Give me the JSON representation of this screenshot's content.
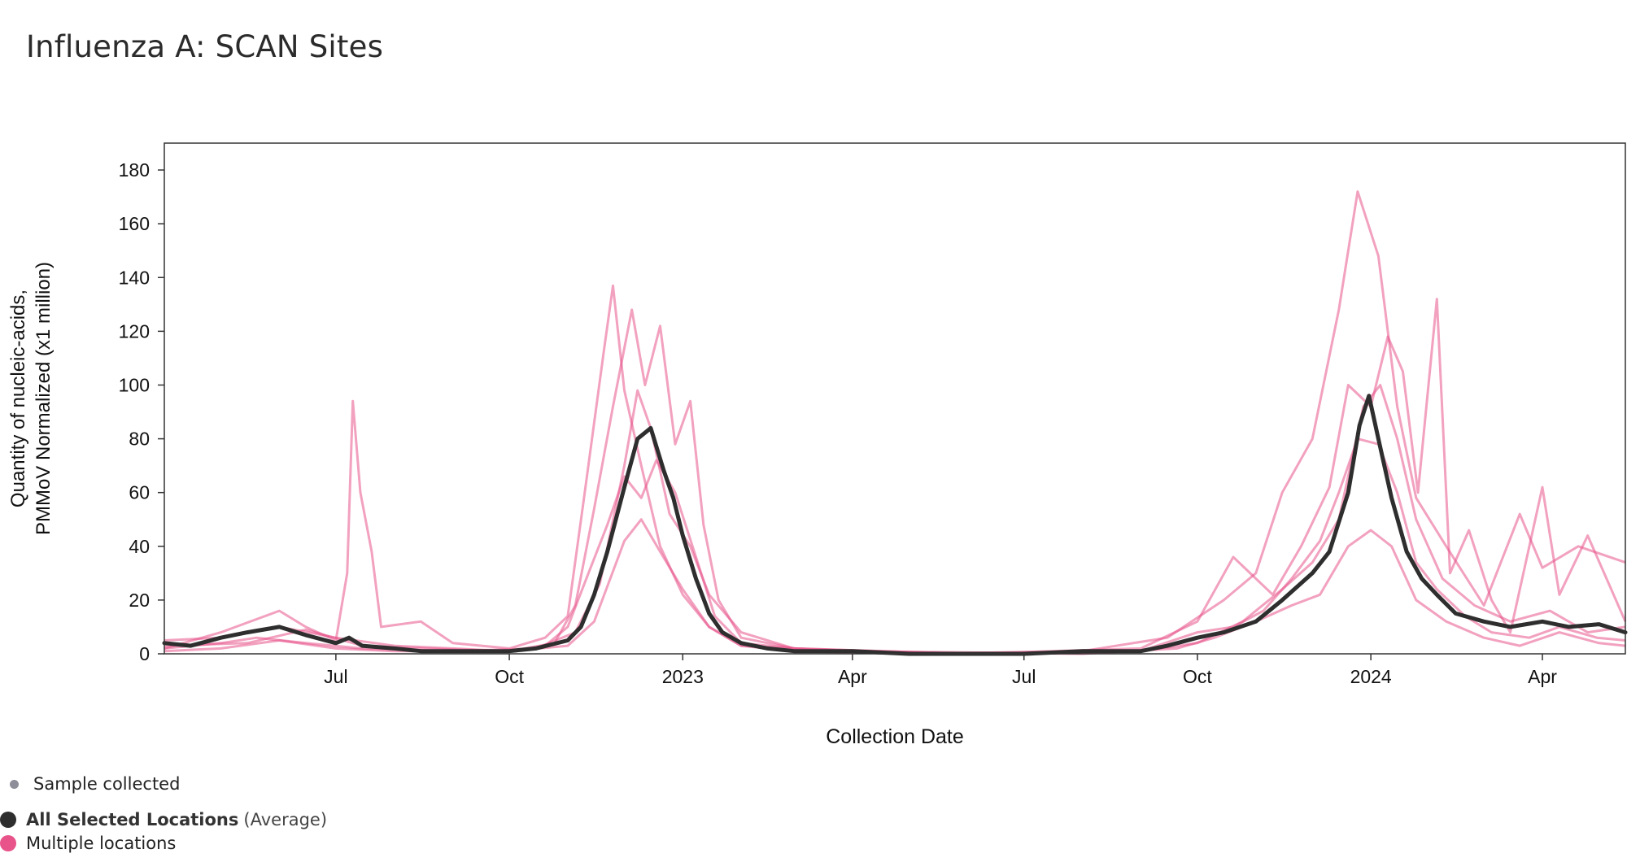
{
  "title": "Influenza A: SCAN Sites",
  "legend": {
    "sample": "Sample collected",
    "avg_bold": "All Selected Locations",
    "avg_sub": "(Average)",
    "multi": "Multiple locations"
  },
  "colors": {
    "average": "#2e2e2e",
    "locations": "#e8548a",
    "sample_dot": "#8e8e9a"
  },
  "chart_data": {
    "type": "line",
    "title": "Influenza A: SCAN Sites",
    "xlabel": "Collection Date",
    "ylabel": [
      "Quantity of nucleic-acids,",
      "PMMoV Normalized (x1 million)"
    ],
    "xlim": [
      "2022-04-01",
      "2024-05-15"
    ],
    "ylim": [
      0,
      190
    ],
    "yticks": [
      0,
      20,
      40,
      60,
      80,
      100,
      120,
      140,
      160,
      180
    ],
    "xticks": [
      {
        "date": "2022-07-01",
        "label": "Jul"
      },
      {
        "date": "2022-10-01",
        "label": "Oct"
      },
      {
        "date": "2023-01-01",
        "label": "2023"
      },
      {
        "date": "2023-04-01",
        "label": "Apr"
      },
      {
        "date": "2023-07-01",
        "label": "Jul"
      },
      {
        "date": "2023-10-01",
        "label": "Oct"
      },
      {
        "date": "2024-01-01",
        "label": "2024"
      },
      {
        "date": "2024-04-01",
        "label": "Apr"
      }
    ],
    "series": [
      {
        "name": "All Selected Locations",
        "role": "average",
        "points": [
          [
            "2022-04-01",
            4
          ],
          [
            "2022-04-15",
            3
          ],
          [
            "2022-05-01",
            6
          ],
          [
            "2022-05-15",
            8
          ],
          [
            "2022-06-01",
            10
          ],
          [
            "2022-06-15",
            7
          ],
          [
            "2022-07-01",
            4
          ],
          [
            "2022-07-08",
            6
          ],
          [
            "2022-07-15",
            3
          ],
          [
            "2022-08-01",
            2
          ],
          [
            "2022-08-15",
            1
          ],
          [
            "2022-09-01",
            1
          ],
          [
            "2022-09-15",
            1
          ],
          [
            "2022-10-01",
            1
          ],
          [
            "2022-10-15",
            2
          ],
          [
            "2022-11-01",
            5
          ],
          [
            "2022-11-08",
            10
          ],
          [
            "2022-11-15",
            22
          ],
          [
            "2022-11-22",
            38
          ],
          [
            "2022-12-01",
            62
          ],
          [
            "2022-12-08",
            80
          ],
          [
            "2022-12-15",
            84
          ],
          [
            "2022-12-22",
            68
          ],
          [
            "2022-12-27",
            58
          ],
          [
            "2023-01-01",
            44
          ],
          [
            "2023-01-08",
            28
          ],
          [
            "2023-01-15",
            15
          ],
          [
            "2023-01-22",
            8
          ],
          [
            "2023-02-01",
            4
          ],
          [
            "2023-02-15",
            2
          ],
          [
            "2023-03-01",
            1
          ],
          [
            "2023-04-01",
            1
          ],
          [
            "2023-05-01",
            0
          ],
          [
            "2023-06-01",
            0
          ],
          [
            "2023-07-01",
            0
          ],
          [
            "2023-08-01",
            1
          ],
          [
            "2023-09-01",
            1
          ],
          [
            "2023-09-15",
            3
          ],
          [
            "2023-10-01",
            6
          ],
          [
            "2023-10-15",
            8
          ],
          [
            "2023-11-01",
            12
          ],
          [
            "2023-11-15",
            20
          ],
          [
            "2023-12-01",
            30
          ],
          [
            "2023-12-10",
            38
          ],
          [
            "2023-12-20",
            60
          ],
          [
            "2023-12-26",
            85
          ],
          [
            "2023-12-31",
            96
          ],
          [
            "2024-01-05",
            80
          ],
          [
            "2024-01-12",
            58
          ],
          [
            "2024-01-20",
            38
          ],
          [
            "2024-01-28",
            28
          ],
          [
            "2024-02-05",
            22
          ],
          [
            "2024-02-15",
            15
          ],
          [
            "2024-03-01",
            12
          ],
          [
            "2024-03-15",
            10
          ],
          [
            "2024-04-01",
            12
          ],
          [
            "2024-04-15",
            10
          ],
          [
            "2024-05-01",
            11
          ],
          [
            "2024-05-15",
            8
          ]
        ]
      },
      {
        "name": "Multiple locations",
        "role": "location",
        "points": [
          [
            "2022-04-01",
            2
          ],
          [
            "2022-05-01",
            8
          ],
          [
            "2022-06-01",
            16
          ],
          [
            "2022-06-15",
            10
          ],
          [
            "2022-07-01",
            5
          ],
          [
            "2022-07-07",
            30
          ],
          [
            "2022-07-10",
            94
          ],
          [
            "2022-07-14",
            60
          ],
          [
            "2022-07-20",
            38
          ],
          [
            "2022-07-25",
            10
          ],
          [
            "2022-08-15",
            12
          ],
          [
            "2022-09-01",
            4
          ],
          [
            "2022-10-01",
            2
          ],
          [
            "2022-10-20",
            6
          ],
          [
            "2022-11-01",
            14
          ],
          [
            "2022-11-10",
            60
          ],
          [
            "2022-11-20",
            112
          ],
          [
            "2022-11-25",
            137
          ],
          [
            "2022-12-01",
            98
          ],
          [
            "2022-12-10",
            70
          ],
          [
            "2022-12-20",
            40
          ],
          [
            "2023-01-01",
            22
          ],
          [
            "2023-01-15",
            10
          ],
          [
            "2023-02-01",
            3
          ],
          [
            "2023-03-01",
            1
          ],
          [
            "2023-05-01",
            0
          ],
          [
            "2023-08-01",
            1
          ],
          [
            "2023-09-15",
            6
          ],
          [
            "2023-10-15",
            20
          ],
          [
            "2023-11-01",
            30
          ],
          [
            "2023-11-15",
            60
          ],
          [
            "2023-12-01",
            80
          ],
          [
            "2023-12-15",
            128
          ],
          [
            "2023-12-25",
            172
          ],
          [
            "2024-01-05",
            148
          ],
          [
            "2024-01-15",
            92
          ],
          [
            "2024-01-25",
            58
          ],
          [
            "2024-02-10",
            40
          ],
          [
            "2024-03-01",
            18
          ],
          [
            "2024-03-20",
            52
          ],
          [
            "2024-04-01",
            32
          ],
          [
            "2024-04-20",
            40
          ],
          [
            "2024-05-15",
            34
          ]
        ]
      },
      {
        "name": "Multiple locations",
        "role": "location",
        "points": [
          [
            "2022-04-01",
            5
          ],
          [
            "2022-05-01",
            6
          ],
          [
            "2022-06-01",
            10
          ],
          [
            "2022-07-01",
            6
          ],
          [
            "2022-08-01",
            3
          ],
          [
            "2022-09-01",
            2
          ],
          [
            "2022-10-01",
            1
          ],
          [
            "2022-10-25",
            4
          ],
          [
            "2022-11-05",
            18
          ],
          [
            "2022-11-15",
            54
          ],
          [
            "2022-11-25",
            92
          ],
          [
            "2022-12-05",
            128
          ],
          [
            "2022-12-12",
            100
          ],
          [
            "2022-12-20",
            122
          ],
          [
            "2022-12-28",
            78
          ],
          [
            "2023-01-05",
            94
          ],
          [
            "2023-01-12",
            48
          ],
          [
            "2023-01-20",
            20
          ],
          [
            "2023-02-01",
            6
          ],
          [
            "2023-03-01",
            2
          ],
          [
            "2023-06-01",
            0
          ],
          [
            "2023-09-01",
            2
          ],
          [
            "2023-10-01",
            12
          ],
          [
            "2023-10-20",
            36
          ],
          [
            "2023-11-10",
            22
          ],
          [
            "2023-11-25",
            40
          ],
          [
            "2023-12-10",
            62
          ],
          [
            "2023-12-20",
            100
          ],
          [
            "2024-01-01",
            92
          ],
          [
            "2024-01-10",
            118
          ],
          [
            "2024-01-18",
            105
          ],
          [
            "2024-01-26",
            60
          ],
          [
            "2024-02-05",
            132
          ],
          [
            "2024-02-12",
            30
          ],
          [
            "2024-02-22",
            46
          ],
          [
            "2024-03-05",
            20
          ],
          [
            "2024-03-15",
            8
          ],
          [
            "2024-04-01",
            62
          ],
          [
            "2024-04-10",
            22
          ],
          [
            "2024-04-25",
            44
          ],
          [
            "2024-05-15",
            12
          ]
        ]
      },
      {
        "name": "Multiple locations",
        "role": "location",
        "points": [
          [
            "2022-04-01",
            3
          ],
          [
            "2022-05-15",
            4
          ],
          [
            "2022-06-15",
            9
          ],
          [
            "2022-07-15",
            3
          ],
          [
            "2022-08-15",
            2
          ],
          [
            "2022-10-01",
            1
          ],
          [
            "2022-10-20",
            3
          ],
          [
            "2022-11-01",
            10
          ],
          [
            "2022-11-12",
            30
          ],
          [
            "2022-11-22",
            48
          ],
          [
            "2022-12-01",
            66
          ],
          [
            "2022-12-10",
            58
          ],
          [
            "2022-12-18",
            72
          ],
          [
            "2022-12-28",
            60
          ],
          [
            "2023-01-08",
            36
          ],
          [
            "2023-01-18",
            14
          ],
          [
            "2023-02-01",
            4
          ],
          [
            "2023-03-15",
            1
          ],
          [
            "2023-07-01",
            0
          ],
          [
            "2023-09-01",
            1
          ],
          [
            "2023-10-01",
            8
          ],
          [
            "2023-10-20",
            10
          ],
          [
            "2023-11-05",
            16
          ],
          [
            "2023-11-20",
            28
          ],
          [
            "2023-12-05",
            42
          ],
          [
            "2023-12-15",
            60
          ],
          [
            "2023-12-25",
            80
          ],
          [
            "2024-01-05",
            78
          ],
          [
            "2024-01-15",
            60
          ],
          [
            "2024-01-25",
            34
          ],
          [
            "2024-02-05",
            24
          ],
          [
            "2024-02-20",
            14
          ],
          [
            "2024-03-05",
            8
          ],
          [
            "2024-03-25",
            6
          ],
          [
            "2024-04-10",
            10
          ],
          [
            "2024-04-30",
            6
          ],
          [
            "2024-05-15",
            5
          ]
        ]
      },
      {
        "name": "Multiple locations",
        "role": "location",
        "points": [
          [
            "2022-04-01",
            1
          ],
          [
            "2022-05-01",
            2
          ],
          [
            "2022-06-01",
            5
          ],
          [
            "2022-07-01",
            2
          ],
          [
            "2022-08-01",
            1
          ],
          [
            "2022-10-01",
            1
          ],
          [
            "2022-11-01",
            3
          ],
          [
            "2022-11-15",
            12
          ],
          [
            "2022-12-01",
            42
          ],
          [
            "2022-12-10",
            50
          ],
          [
            "2022-12-20",
            38
          ],
          [
            "2023-01-01",
            24
          ],
          [
            "2023-01-15",
            10
          ],
          [
            "2023-02-01",
            3
          ],
          [
            "2023-04-01",
            1
          ],
          [
            "2023-08-01",
            0
          ],
          [
            "2023-09-20",
            2
          ],
          [
            "2023-10-10",
            6
          ],
          [
            "2023-11-01",
            12
          ],
          [
            "2023-11-20",
            18
          ],
          [
            "2023-12-05",
            22
          ],
          [
            "2023-12-20",
            40
          ],
          [
            "2024-01-01",
            46
          ],
          [
            "2024-01-12",
            40
          ],
          [
            "2024-01-25",
            20
          ],
          [
            "2024-02-10",
            12
          ],
          [
            "2024-03-01",
            6
          ],
          [
            "2024-03-20",
            3
          ],
          [
            "2024-04-10",
            8
          ],
          [
            "2024-05-01",
            4
          ],
          [
            "2024-05-15",
            3
          ]
        ]
      },
      {
        "name": "Multiple locations",
        "role": "location",
        "points": [
          [
            "2022-04-01",
            2
          ],
          [
            "2022-05-01",
            4
          ],
          [
            "2022-05-20",
            6
          ],
          [
            "2022-06-15",
            4
          ],
          [
            "2022-07-15",
            2
          ],
          [
            "2022-09-01",
            1
          ],
          [
            "2022-10-15",
            2
          ],
          [
            "2022-11-05",
            8
          ],
          [
            "2022-11-18",
            26
          ],
          [
            "2022-12-01",
            70
          ],
          [
            "2022-12-08",
            98
          ],
          [
            "2022-12-15",
            84
          ],
          [
            "2022-12-25",
            52
          ],
          [
            "2023-01-05",
            40
          ],
          [
            "2023-01-15",
            22
          ],
          [
            "2023-02-01",
            8
          ],
          [
            "2023-03-01",
            2
          ],
          [
            "2023-06-01",
            0
          ],
          [
            "2023-09-01",
            1
          ],
          [
            "2023-10-01",
            4
          ],
          [
            "2023-10-25",
            12
          ],
          [
            "2023-11-15",
            24
          ],
          [
            "2023-12-01",
            34
          ],
          [
            "2023-12-15",
            50
          ],
          [
            "2023-12-28",
            92
          ],
          [
            "2024-01-06",
            100
          ],
          [
            "2024-01-15",
            80
          ],
          [
            "2024-01-25",
            50
          ],
          [
            "2024-02-08",
            28
          ],
          [
            "2024-02-25",
            18
          ],
          [
            "2024-03-15",
            12
          ],
          [
            "2024-04-05",
            16
          ],
          [
            "2024-04-25",
            8
          ],
          [
            "2024-05-15",
            10
          ]
        ]
      }
    ]
  }
}
